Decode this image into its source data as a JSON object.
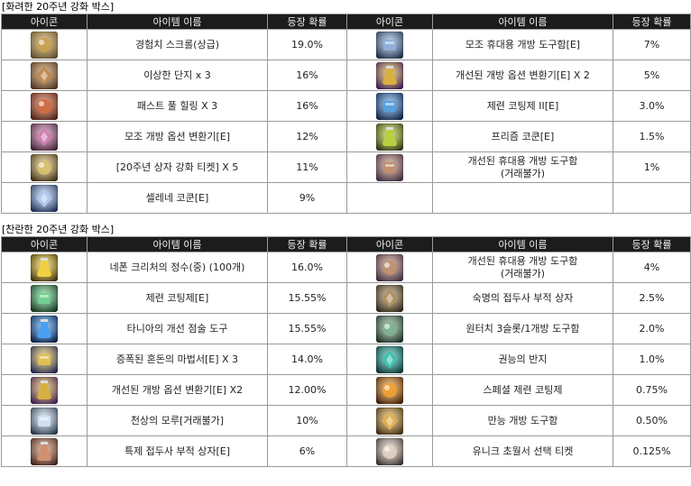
{
  "sections": [
    {
      "title": "[화려한 20주년 강화 박스]",
      "headers": [
        "아이콘",
        "아이템 이름",
        "등장 확률",
        "아이콘",
        "아이템 이름",
        "등장 확률"
      ],
      "rows": [
        [
          {
            "icon": "exp-scroll-icon",
            "name": "경험치 스크롤(상급)",
            "prob": "19.0%",
            "c1": "#5a4a2a",
            "c2": "#c9a050"
          },
          {
            "icon": "wrench-toolbox-icon",
            "name": "모조 휴대용 개방 도구함[E]",
            "prob": "7%",
            "c1": "#1c2a44",
            "c2": "#8fb0d8"
          }
        ],
        [
          {
            "icon": "strange-jar-icon",
            "name": "이상한 단지 x 3",
            "prob": "16%",
            "c1": "#4a3220",
            "c2": "#c08a50"
          },
          {
            "icon": "option-changer-purple-icon",
            "name": "개선된 개방 옵션 변환기[E] X 2",
            "prob": "5%",
            "c1": "#3a1a55",
            "c2": "#d8b040"
          }
        ],
        [
          {
            "icon": "potion-crate-icon",
            "name": "패스트 풀 힐링 X 3",
            "prob": "16%",
            "c1": "#4a1e14",
            "c2": "#d06a40"
          },
          {
            "icon": "coating-flask-blue-icon",
            "name": "제련 코팅제 II[E]",
            "prob": "3.0%",
            "c1": "#102040",
            "c2": "#5aa0e0"
          }
        ],
        [
          {
            "icon": "option-changer-pink-icon",
            "name": "모조 개방 옵션 변환기[E]",
            "prob": "12%",
            "c1": "#3a2030",
            "c2": "#d080b0"
          },
          {
            "icon": "prism-cocoon-icon",
            "name": "프리즘 코쿤[E]",
            "prob": "1.5%",
            "c1": "#2a3410",
            "c2": "#b8d040"
          }
        ],
        [
          {
            "icon": "anniversary-ticket-icon",
            "name": "[20주년 상자 강화 티켓] X 5",
            "prob": "11%",
            "c1": "#3a2a10",
            "c2": "#d8c070"
          },
          {
            "icon": "portable-toolbox-icon",
            "name": "개선된 휴대용 개방 도구함\n(거래불가)",
            "prob": "1%",
            "c1": "#3a2a40",
            "c2": "#c09070"
          }
        ],
        [
          {
            "icon": "selene-cocoon-icon",
            "name": "셀레네 코쿤[E]",
            "prob": "9%",
            "c1": "#1a2a50",
            "c2": "#b0c8f0"
          },
          {
            "icon": "",
            "name": "",
            "prob": "",
            "c1": "",
            "c2": ""
          }
        ]
      ]
    },
    {
      "title": "[찬란한 20주년 강화 박스]",
      "headers": [
        "아이콘",
        "아이템 이름",
        "등장 확률",
        "아이콘",
        "아이템 이름",
        "등장 확률"
      ],
      "rows": [
        [
          {
            "icon": "creature-essence-icon",
            "name": "네폰 크리처의 정수(중) (100개)",
            "prob": "16.0%",
            "c1": "#3a3008",
            "c2": "#f0d040"
          },
          {
            "icon": "portable-toolbox-icon",
            "name": "개선된 휴대용 개방 도구함\n(거래불가)",
            "prob": "4%",
            "c1": "#3a2a40",
            "c2": "#c09070"
          }
        ],
        [
          {
            "icon": "coating-flask-green-icon",
            "name": "제련 코팅제[E]",
            "prob": "15.55%",
            "c1": "#10301a",
            "c2": "#70d090"
          },
          {
            "icon": "fate-amulet-box-icon",
            "name": "숙명의 접두사 부적 상자",
            "prob": "2.5%",
            "c1": "#2a2418",
            "c2": "#b09060"
          }
        ],
        [
          {
            "icon": "tinia-orb-icon",
            "name": "타니아의 개선 점술 도구",
            "prob": "15.55%",
            "c1": "#0a1a40",
            "c2": "#4aa0f0"
          },
          {
            "icon": "one-touch-toolbox-icon",
            "name": "원터치 3슬롯/1개방 도구함",
            "prob": "2.0%",
            "c1": "#1a2a20",
            "c2": "#80b090"
          }
        ],
        [
          {
            "icon": "chaos-book-icon",
            "name": "증폭된 혼돈의 마법서[E] X 3",
            "prob": "14.0%",
            "c1": "#1a2050",
            "c2": "#e0c050"
          },
          {
            "icon": "authority-ring-icon",
            "name": "권능의 반지",
            "prob": "1.0%",
            "c1": "#0a3030",
            "c2": "#40c0b0"
          }
        ],
        [
          {
            "icon": "option-changer-purple-icon",
            "name": "개선된 개방 옵션 변환기[E] X2",
            "prob": "12.00%",
            "c1": "#3a1a55",
            "c2": "#d8b040"
          },
          {
            "icon": "special-coating-icon",
            "name": "스페셜 제련 코팅제",
            "prob": "0.75%",
            "c1": "#3a1a08",
            "c2": "#f0a030"
          }
        ],
        [
          {
            "icon": "celestial-cap-icon",
            "name": "천상의 모루[거래불가]",
            "prob": "10%",
            "c1": "#203040",
            "c2": "#d0e0f0"
          },
          {
            "icon": "universal-toolbox-icon",
            "name": "만능 개방 도구함",
            "prob": "0.50%",
            "c1": "#3a2810",
            "c2": "#e0b050"
          }
        ],
        [
          {
            "icon": "special-amulet-box-icon",
            "name": "특제 접두사 부적 상자[E]",
            "prob": "6%",
            "c1": "#3a2018",
            "c2": "#d09070"
          },
          {
            "icon": "unique-select-ticket-icon",
            "name": "유니크 초월서 선택 티켓",
            "prob": "0.125%",
            "c1": "#302a28",
            "c2": "#e0d0c0"
          }
        ]
      ]
    }
  ]
}
